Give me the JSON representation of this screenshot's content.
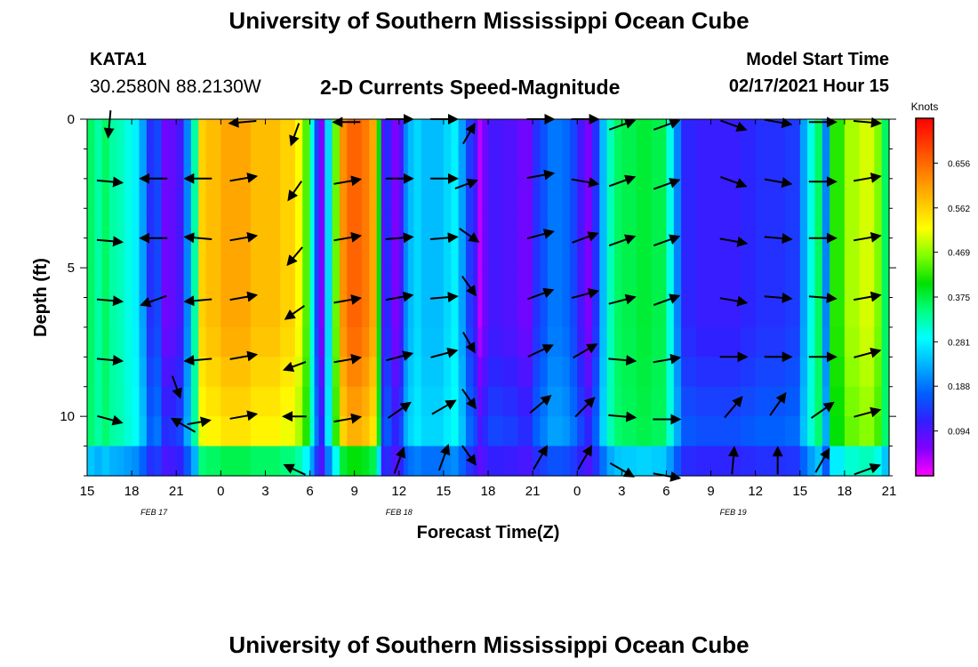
{
  "page": {
    "title_top": "University of Southern Mississippi Ocean Cube",
    "title_bottom": "University of Southern Mississippi Ocean Cube",
    "station_id": "KATA1",
    "coordinates": "30.2580N 88.2130W",
    "model_start_label": "Model Start Time",
    "model_start_value": "02/17/2021 Hour 15"
  },
  "colors": {
    "palette": [
      "#ff00ff",
      "#8000ff",
      "#3020ff",
      "#0060ff",
      "#00b0ff",
      "#00ffff",
      "#00ff80",
      "#00e000",
      "#80ff00",
      "#ffff00",
      "#ffc000",
      "#ff8000",
      "#ff4000",
      "#ff0000"
    ]
  },
  "chart_data": {
    "type": "heatmap",
    "title": "2-D Currents Speed-Magnitude",
    "xlabel": "Forecast Time(Z)",
    "ylabel": "Depth (ft)",
    "x_ticks": [
      "15",
      "18",
      "21",
      "0",
      "3",
      "6",
      "9",
      "12",
      "15",
      "18",
      "21",
      "0",
      "3",
      "6",
      "9",
      "12",
      "15",
      "18",
      "21"
    ],
    "x_tick_hours": [
      0,
      3,
      6,
      9,
      12,
      15,
      18,
      21,
      24,
      27,
      30,
      33,
      36,
      39,
      42,
      45,
      48,
      51,
      54
    ],
    "date_labels": [
      {
        "text": "FEB 17",
        "hour": 4.5
      },
      {
        "text": "FEB 18",
        "hour": 21
      },
      {
        "text": "FEB 19",
        "hour": 43.5
      }
    ],
    "xlim": [
      0,
      54
    ],
    "y_ticks": [
      "0",
      "5",
      "10"
    ],
    "y_tick_values": [
      0,
      5,
      10
    ],
    "ylim": [
      0,
      12
    ],
    "colorbar": {
      "label": "Knots",
      "ticks": [
        "0.656",
        "0.562",
        "0.469",
        "0.375",
        "0.281",
        "0.188",
        "0.094"
      ],
      "tick_values": [
        0.656,
        0.562,
        0.469,
        0.375,
        0.281,
        0.188,
        0.094
      ],
      "range": [
        0,
        0.75
      ]
    },
    "depth_rows_ft": [
      0,
      1,
      2,
      3,
      4,
      5,
      6,
      7,
      8,
      9,
      10,
      11,
      12
    ],
    "time_columns": [
      {
        "h": 0.0,
        "v": 0.36
      },
      {
        "h": 0.5,
        "v": 0.33
      },
      {
        "h": 1.0,
        "v": 0.36
      },
      {
        "h": 1.5,
        "v": 0.33
      },
      {
        "h": 2.0,
        "v": 0.32
      },
      {
        "h": 2.5,
        "v": 0.3
      },
      {
        "h": 3.0,
        "v": 0.28
      },
      {
        "h": 3.5,
        "v": 0.22
      },
      {
        "h": 4.0,
        "v": 0.13
      },
      {
        "h": 4.5,
        "v": 0.15
      },
      {
        "h": 5.0,
        "v": 0.07
      },
      {
        "h": 5.5,
        "v": 0.08
      },
      {
        "h": 6.0,
        "v": 0.1
      },
      {
        "h": 6.5,
        "v": 0.2
      },
      {
        "h": 7.0,
        "v": 0.33
      },
      {
        "h": 7.5,
        "v": 0.56
      },
      {
        "h": 8.0,
        "v": 0.58
      },
      {
        "h": 9.0,
        "v": 0.6
      },
      {
        "h": 10.0,
        "v": 0.6
      },
      {
        "h": 11.0,
        "v": 0.58
      },
      {
        "h": 12.0,
        "v": 0.58
      },
      {
        "h": 13.0,
        "v": 0.56
      },
      {
        "h": 14.0,
        "v": 0.52
      },
      {
        "h": 14.5,
        "v": 0.44
      },
      {
        "h": 15.0,
        "v": 0.3
      },
      {
        "h": 15.3,
        "v": 0.15
      },
      {
        "h": 15.6,
        "v": 0.06
      },
      {
        "h": 16.0,
        "v": 0.26
      },
      {
        "h": 16.5,
        "v": 0.45
      },
      {
        "h": 17.0,
        "v": 0.62
      },
      {
        "h": 17.5,
        "v": 0.66
      },
      {
        "h": 18.0,
        "v": 0.66
      },
      {
        "h": 18.5,
        "v": 0.64
      },
      {
        "h": 19.0,
        "v": 0.6
      },
      {
        "h": 19.5,
        "v": 0.4
      },
      {
        "h": 19.8,
        "v": 0.08
      },
      {
        "h": 20.0,
        "v": 0.12
      },
      {
        "h": 20.5,
        "v": 0.06
      },
      {
        "h": 21.0,
        "v": 0.1
      },
      {
        "h": 21.3,
        "v": 0.2
      },
      {
        "h": 21.6,
        "v": 0.24
      },
      {
        "h": 22.0,
        "v": 0.26
      },
      {
        "h": 22.5,
        "v": 0.24
      },
      {
        "h": 23.0,
        "v": 0.24
      },
      {
        "h": 23.5,
        "v": 0.24
      },
      {
        "h": 24.0,
        "v": 0.26
      },
      {
        "h": 24.5,
        "v": 0.28
      },
      {
        "h": 25.0,
        "v": 0.22
      },
      {
        "h": 25.5,
        "v": 0.14
      },
      {
        "h": 26.0,
        "v": 0.1
      },
      {
        "h": 26.3,
        "v": 0.03
      },
      {
        "h": 26.6,
        "v": 0.07
      },
      {
        "h": 27.0,
        "v": 0.1
      },
      {
        "h": 28.0,
        "v": 0.09
      },
      {
        "h": 29.0,
        "v": 0.07
      },
      {
        "h": 30.0,
        "v": 0.13
      },
      {
        "h": 30.5,
        "v": 0.16
      },
      {
        "h": 31.0,
        "v": 0.19
      },
      {
        "h": 32.0,
        "v": 0.18
      },
      {
        "h": 32.5,
        "v": 0.15
      },
      {
        "h": 33.0,
        "v": 0.1
      },
      {
        "h": 33.5,
        "v": 0.06
      },
      {
        "h": 34.0,
        "v": 0.13
      },
      {
        "h": 34.5,
        "v": 0.24
      },
      {
        "h": 35.0,
        "v": 0.32
      },
      {
        "h": 35.5,
        "v": 0.36
      },
      {
        "h": 36.0,
        "v": 0.37
      },
      {
        "h": 37.0,
        "v": 0.38
      },
      {
        "h": 38.0,
        "v": 0.37
      },
      {
        "h": 39.0,
        "v": 0.3
      },
      {
        "h": 39.5,
        "v": 0.2
      },
      {
        "h": 40.0,
        "v": 0.12
      },
      {
        "h": 41.0,
        "v": 0.11
      },
      {
        "h": 42.0,
        "v": 0.11
      },
      {
        "h": 43.0,
        "v": 0.11
      },
      {
        "h": 44.0,
        "v": 0.12
      },
      {
        "h": 45.0,
        "v": 0.13
      },
      {
        "h": 46.0,
        "v": 0.13
      },
      {
        "h": 47.0,
        "v": 0.14
      },
      {
        "h": 48.0,
        "v": 0.22
      },
      {
        "h": 48.5,
        "v": 0.3
      },
      {
        "h": 49.0,
        "v": 0.36
      },
      {
        "h": 49.5,
        "v": 0.2
      },
      {
        "h": 50.0,
        "v": 0.42
      },
      {
        "h": 51.0,
        "v": 0.48
      },
      {
        "h": 52.0,
        "v": 0.5
      },
      {
        "h": 53.0,
        "v": 0.46
      },
      {
        "h": 53.5,
        "v": 0.36
      }
    ],
    "vectors": [
      {
        "h": 1.5,
        "d": 0.15,
        "dir": 185,
        "speed": 0.35
      },
      {
        "h": 1.5,
        "d": 2.1,
        "dir": 95,
        "speed": 0.33
      },
      {
        "h": 1.5,
        "d": 4.1,
        "dir": 95,
        "speed": 0.33
      },
      {
        "h": 1.5,
        "d": 6.1,
        "dir": 95,
        "speed": 0.33
      },
      {
        "h": 1.5,
        "d": 8.1,
        "dir": 95,
        "speed": 0.33
      },
      {
        "h": 1.5,
        "d": 10.1,
        "dir": 105,
        "speed": 0.33
      },
      {
        "h": 4.5,
        "d": 2.0,
        "dir": 270,
        "speed": 0.35
      },
      {
        "h": 4.5,
        "d": 4.0,
        "dir": 270,
        "speed": 0.35
      },
      {
        "h": 4.5,
        "d": 6.1,
        "dir": 250,
        "speed": 0.35
      },
      {
        "h": 6.0,
        "d": 9.0,
        "dir": 160,
        "speed": 0.3
      },
      {
        "h": 6.5,
        "d": 10.3,
        "dir": 300,
        "speed": 0.35
      },
      {
        "h": 7.5,
        "d": 10.2,
        "dir": 80,
        "speed": 0.3
      },
      {
        "h": 7.5,
        "d": 2.0,
        "dir": 270,
        "speed": 0.35
      },
      {
        "h": 7.5,
        "d": 4.0,
        "dir": 275,
        "speed": 0.35
      },
      {
        "h": 7.5,
        "d": 6.1,
        "dir": 265,
        "speed": 0.35
      },
      {
        "h": 7.5,
        "d": 8.1,
        "dir": 265,
        "speed": 0.35
      },
      {
        "h": 10.5,
        "d": 0.1,
        "dir": 265,
        "speed": 0.35
      },
      {
        "h": 10.5,
        "d": 2.0,
        "dir": 80,
        "speed": 0.35
      },
      {
        "h": 10.5,
        "d": 4.0,
        "dir": 80,
        "speed": 0.35
      },
      {
        "h": 10.5,
        "d": 6.0,
        "dir": 80,
        "speed": 0.35
      },
      {
        "h": 10.5,
        "d": 8.0,
        "dir": 80,
        "speed": 0.35
      },
      {
        "h": 10.5,
        "d": 10.0,
        "dir": 80,
        "speed": 0.35
      },
      {
        "h": 14.0,
        "d": 0.5,
        "dir": 200,
        "speed": 0.3
      },
      {
        "h": 14.0,
        "d": 2.4,
        "dir": 215,
        "speed": 0.3
      },
      {
        "h": 14.0,
        "d": 4.6,
        "dir": 220,
        "speed": 0.3
      },
      {
        "h": 14.0,
        "d": 6.5,
        "dir": 235,
        "speed": 0.3
      },
      {
        "h": 14.0,
        "d": 8.3,
        "dir": 250,
        "speed": 0.3
      },
      {
        "h": 14.0,
        "d": 10.0,
        "dir": 270,
        "speed": 0.3
      },
      {
        "h": 14.0,
        "d": 11.8,
        "dir": 295,
        "speed": 0.3
      },
      {
        "h": 17.5,
        "d": 0.1,
        "dir": 270,
        "speed": 0.35
      },
      {
        "h": 17.5,
        "d": 2.1,
        "dir": 80,
        "speed": 0.35
      },
      {
        "h": 17.5,
        "d": 4.0,
        "dir": 80,
        "speed": 0.35
      },
      {
        "h": 17.5,
        "d": 6.1,
        "dir": 80,
        "speed": 0.35
      },
      {
        "h": 17.5,
        "d": 8.1,
        "dir": 80,
        "speed": 0.35
      },
      {
        "h": 17.5,
        "d": 10.1,
        "dir": 80,
        "speed": 0.35
      },
      {
        "h": 21.0,
        "d": 0.0,
        "dir": 90,
        "speed": 0.35
      },
      {
        "h": 21.0,
        "d": 2.0,
        "dir": 90,
        "speed": 0.35
      },
      {
        "h": 21.0,
        "d": 4.0,
        "dir": 85,
        "speed": 0.35
      },
      {
        "h": 21.0,
        "d": 6.0,
        "dir": 80,
        "speed": 0.35
      },
      {
        "h": 21.0,
        "d": 8.0,
        "dir": 75,
        "speed": 0.35
      },
      {
        "h": 21.0,
        "d": 9.8,
        "dir": 55,
        "speed": 0.35
      },
      {
        "h": 21.0,
        "d": 11.5,
        "dir": 20,
        "speed": 0.35
      },
      {
        "h": 24.0,
        "d": 0.0,
        "dir": 90,
        "speed": 0.35
      },
      {
        "h": 24.0,
        "d": 2.0,
        "dir": 90,
        "speed": 0.35
      },
      {
        "h": 24.0,
        "d": 4.0,
        "dir": 85,
        "speed": 0.35
      },
      {
        "h": 24.0,
        "d": 6.0,
        "dir": 85,
        "speed": 0.35
      },
      {
        "h": 24.0,
        "d": 7.9,
        "dir": 75,
        "speed": 0.35
      },
      {
        "h": 24.0,
        "d": 9.7,
        "dir": 60,
        "speed": 0.35
      },
      {
        "h": 24.0,
        "d": 11.4,
        "dir": 20,
        "speed": 0.35
      },
      {
        "h": 25.5,
        "d": 2.2,
        "dir": 70,
        "speed": 0.3
      },
      {
        "h": 25.7,
        "d": 0.5,
        "dir": 30,
        "speed": 0.3
      },
      {
        "h": 25.7,
        "d": 3.9,
        "dir": 125,
        "speed": 0.3
      },
      {
        "h": 25.7,
        "d": 5.6,
        "dir": 145,
        "speed": 0.3
      },
      {
        "h": 25.7,
        "d": 7.5,
        "dir": 150,
        "speed": 0.3
      },
      {
        "h": 25.7,
        "d": 9.4,
        "dir": 145,
        "speed": 0.3
      },
      {
        "h": 25.7,
        "d": 11.3,
        "dir": 145,
        "speed": 0.3
      },
      {
        "h": 30.5,
        "d": 0.0,
        "dir": 90,
        "speed": 0.35
      },
      {
        "h": 30.5,
        "d": 1.9,
        "dir": 80,
        "speed": 0.35
      },
      {
        "h": 30.5,
        "d": 3.9,
        "dir": 75,
        "speed": 0.35
      },
      {
        "h": 30.5,
        "d": 5.9,
        "dir": 70,
        "speed": 0.35
      },
      {
        "h": 30.5,
        "d": 7.8,
        "dir": 65,
        "speed": 0.35
      },
      {
        "h": 30.5,
        "d": 9.6,
        "dir": 50,
        "speed": 0.35
      },
      {
        "h": 30.5,
        "d": 11.4,
        "dir": 30,
        "speed": 0.35
      },
      {
        "h": 33.5,
        "d": 0.0,
        "dir": 90,
        "speed": 0.35
      },
      {
        "h": 33.5,
        "d": 2.1,
        "dir": 100,
        "speed": 0.35
      },
      {
        "h": 33.5,
        "d": 4.0,
        "dir": 70,
        "speed": 0.35
      },
      {
        "h": 33.5,
        "d": 5.9,
        "dir": 75,
        "speed": 0.35
      },
      {
        "h": 33.5,
        "d": 7.8,
        "dir": 60,
        "speed": 0.35
      },
      {
        "h": 33.5,
        "d": 9.7,
        "dir": 45,
        "speed": 0.35
      },
      {
        "h": 33.5,
        "d": 11.4,
        "dir": 30,
        "speed": 0.35
      },
      {
        "h": 36.0,
        "d": 0.2,
        "dir": 70,
        "speed": 0.35
      },
      {
        "h": 36.0,
        "d": 2.1,
        "dir": 70,
        "speed": 0.35
      },
      {
        "h": 36.0,
        "d": 4.1,
        "dir": 70,
        "speed": 0.35
      },
      {
        "h": 36.0,
        "d": 6.1,
        "dir": 75,
        "speed": 0.35
      },
      {
        "h": 36.0,
        "d": 8.1,
        "dir": 95,
        "speed": 0.35
      },
      {
        "h": 36.0,
        "d": 10.0,
        "dir": 95,
        "speed": 0.35
      },
      {
        "h": 36.0,
        "d": 11.8,
        "dir": 120,
        "speed": 0.35
      },
      {
        "h": 39.0,
        "d": 0.2,
        "dir": 70,
        "speed": 0.35
      },
      {
        "h": 39.0,
        "d": 2.2,
        "dir": 70,
        "speed": 0.35
      },
      {
        "h": 39.0,
        "d": 4.1,
        "dir": 70,
        "speed": 0.35
      },
      {
        "h": 39.0,
        "d": 6.1,
        "dir": 70,
        "speed": 0.35
      },
      {
        "h": 39.0,
        "d": 8.1,
        "dir": 80,
        "speed": 0.35
      },
      {
        "h": 39.0,
        "d": 10.1,
        "dir": 90,
        "speed": 0.35
      },
      {
        "h": 39.0,
        "d": 12.0,
        "dir": 100,
        "speed": 0.35
      },
      {
        "h": 43.5,
        "d": 0.2,
        "dir": 110,
        "speed": 0.35
      },
      {
        "h": 43.5,
        "d": 2.1,
        "dir": 110,
        "speed": 0.35
      },
      {
        "h": 43.5,
        "d": 4.1,
        "dir": 100,
        "speed": 0.35
      },
      {
        "h": 43.5,
        "d": 6.1,
        "dir": 100,
        "speed": 0.35
      },
      {
        "h": 43.5,
        "d": 8.0,
        "dir": 90,
        "speed": 0.35
      },
      {
        "h": 43.5,
        "d": 9.7,
        "dir": 40,
        "speed": 0.35
      },
      {
        "h": 43.5,
        "d": 11.5,
        "dir": 5,
        "speed": 0.35
      },
      {
        "h": 46.5,
        "d": 0.1,
        "dir": 100,
        "speed": 0.35
      },
      {
        "h": 46.5,
        "d": 2.1,
        "dir": 100,
        "speed": 0.35
      },
      {
        "h": 46.5,
        "d": 4.0,
        "dir": 95,
        "speed": 0.35
      },
      {
        "h": 46.5,
        "d": 6.0,
        "dir": 95,
        "speed": 0.35
      },
      {
        "h": 46.5,
        "d": 8.0,
        "dir": 90,
        "speed": 0.35
      },
      {
        "h": 46.5,
        "d": 9.6,
        "dir": 35,
        "speed": 0.35
      },
      {
        "h": 46.5,
        "d": 11.5,
        "dir": 0,
        "speed": 0.35
      },
      {
        "h": 49.5,
        "d": 0.1,
        "dir": 90,
        "speed": 0.35
      },
      {
        "h": 49.5,
        "d": 2.1,
        "dir": 90,
        "speed": 0.35
      },
      {
        "h": 49.5,
        "d": 4.0,
        "dir": 90,
        "speed": 0.35
      },
      {
        "h": 49.5,
        "d": 6.0,
        "dir": 95,
        "speed": 0.35
      },
      {
        "h": 49.5,
        "d": 8.0,
        "dir": 90,
        "speed": 0.35
      },
      {
        "h": 49.5,
        "d": 9.8,
        "dir": 55,
        "speed": 0.35
      },
      {
        "h": 49.5,
        "d": 11.5,
        "dir": 30,
        "speed": 0.35
      },
      {
        "h": 52.5,
        "d": 0.1,
        "dir": 95,
        "speed": 0.35
      },
      {
        "h": 52.5,
        "d": 2.0,
        "dir": 80,
        "speed": 0.35
      },
      {
        "h": 52.5,
        "d": 4.0,
        "dir": 80,
        "speed": 0.35
      },
      {
        "h": 52.5,
        "d": 6.0,
        "dir": 80,
        "speed": 0.35
      },
      {
        "h": 52.5,
        "d": 7.9,
        "dir": 75,
        "speed": 0.35
      },
      {
        "h": 52.5,
        "d": 9.9,
        "dir": 75,
        "speed": 0.35
      },
      {
        "h": 52.5,
        "d": 11.8,
        "dir": 70,
        "speed": 0.35
      }
    ]
  }
}
